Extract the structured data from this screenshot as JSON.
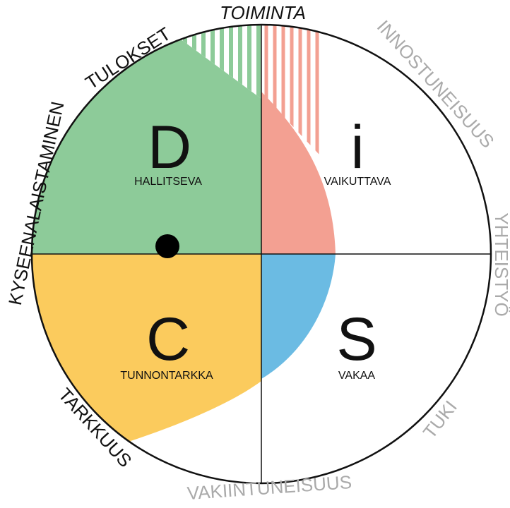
{
  "quadrants": [
    {
      "letter": "D",
      "label": "HALLITSEVA"
    },
    {
      "letter": "i",
      "label": "VAIKUTTAVA"
    },
    {
      "letter": "C",
      "label": "TUNNONTARKKA"
    },
    {
      "letter": "S",
      "label": "VAKAA"
    }
  ],
  "perimeter": [
    "TOIMINTA",
    "TULOKSET",
    "KYSEENALAISTAMINEN",
    "TARKKUUS",
    "VAKIINTUNEISUUS",
    "TUKI",
    "YHTEISTYÖ",
    "INNOSTUNEISUUS"
  ]
}
